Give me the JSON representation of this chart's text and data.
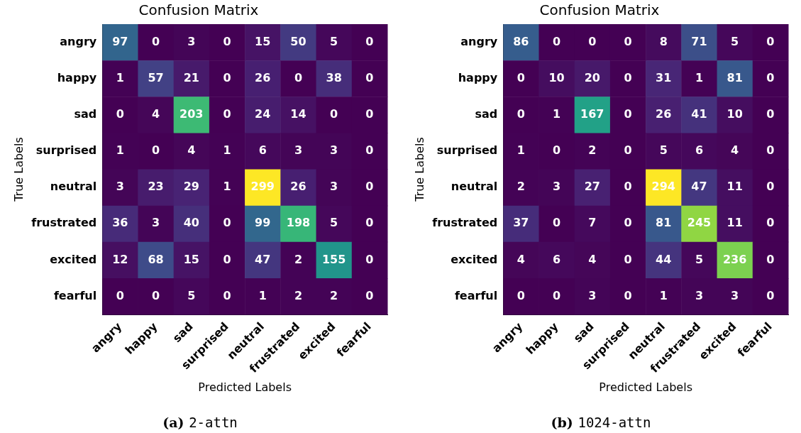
{
  "chart_data": [
    {
      "type": "heatmap",
      "title": "Confusion Matrix",
      "xlabel": "Predicted Labels",
      "ylabel": "True Labels",
      "categories": [
        "angry",
        "happy",
        "sad",
        "surprised",
        "neutral",
        "frustrated",
        "excited",
        "fearful"
      ],
      "y_categories": [
        "angry",
        "happy",
        "sad",
        "surprised",
        "neutral",
        "frustrated",
        "excited",
        "fearful"
      ],
      "cells": [
        [
          97,
          0,
          3,
          0,
          15,
          50,
          5,
          0
        ],
        [
          1,
          57,
          21,
          0,
          26,
          0,
          38,
          0
        ],
        [
          0,
          4,
          203,
          0,
          24,
          14,
          0,
          0
        ],
        [
          1,
          0,
          4,
          1,
          6,
          3,
          3,
          0
        ],
        [
          3,
          23,
          29,
          1,
          299,
          26,
          3,
          0
        ],
        [
          36,
          3,
          40,
          0,
          99,
          198,
          5,
          0
        ],
        [
          12,
          68,
          15,
          0,
          47,
          2,
          155,
          0
        ],
        [
          0,
          0,
          5,
          0,
          1,
          2,
          2,
          0
        ]
      ],
      "data_labels": true,
      "annotations": [
        "(a) 2-attn"
      ]
    },
    {
      "type": "heatmap",
      "title": "Confusion Matrix",
      "xlabel": "Predicted Labels",
      "ylabel": "True Labels",
      "categories": [
        "angry",
        "happy",
        "sad",
        "surprised",
        "neutral",
        "frustrated",
        "excited",
        "fearful"
      ],
      "y_categories": [
        "angry",
        "happy",
        "sad",
        "surprised",
        "neutral",
        "frustrated",
        "excited",
        "fearful"
      ],
      "cells": [
        [
          86,
          0,
          0,
          0,
          8,
          71,
          5,
          0
        ],
        [
          0,
          10,
          20,
          0,
          31,
          1,
          81,
          0
        ],
        [
          0,
          1,
          167,
          0,
          26,
          41,
          10,
          0
        ],
        [
          1,
          0,
          2,
          0,
          5,
          6,
          4,
          0
        ],
        [
          2,
          3,
          27,
          0,
          294,
          47,
          11,
          0
        ],
        [
          37,
          0,
          7,
          0,
          81,
          245,
          11,
          0
        ],
        [
          4,
          6,
          4,
          0,
          44,
          5,
          236,
          0
        ],
        [
          0,
          0,
          3,
          0,
          1,
          3,
          3,
          0
        ]
      ],
      "data_labels": true,
      "annotations": [
        "(b) 1024-attn"
      ]
    }
  ]
}
